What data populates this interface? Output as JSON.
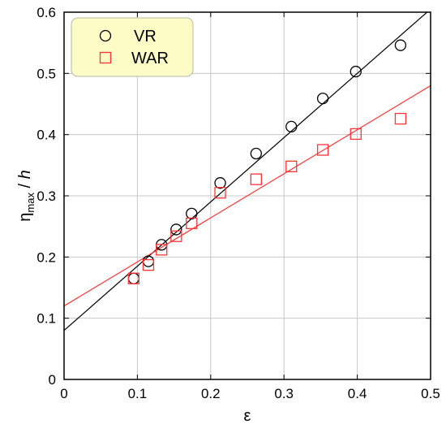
{
  "chart_data": {
    "type": "scatter",
    "xlabel": "ε",
    "ylabel": {
      "base": "η",
      "sub": "max",
      "rest": " / ",
      "italic": "h"
    },
    "xlim": [
      0,
      0.5
    ],
    "ylim": [
      0,
      0.6
    ],
    "xticks": [
      0,
      0.1,
      0.2,
      0.3,
      0.4,
      0.5
    ],
    "yticks": [
      0,
      0.1,
      0.2,
      0.3,
      0.4,
      0.5,
      0.6
    ],
    "xtick_labels": [
      "0",
      "0.1",
      "0.2",
      "0.3",
      "0.4",
      "0.5"
    ],
    "ytick_labels": [
      "0",
      "0.1",
      "0.2",
      "0.3",
      "0.4",
      "0.5",
      "0.6"
    ],
    "grid": true,
    "legend_position": "top-left",
    "series": [
      {
        "name": "VR",
        "marker": "circle",
        "color": "#000000",
        "x": [
          0.095,
          0.115,
          0.133,
          0.153,
          0.174,
          0.213,
          0.262,
          0.31,
          0.353,
          0.398,
          0.459
        ],
        "y": [
          0.165,
          0.193,
          0.22,
          0.245,
          0.271,
          0.321,
          0.369,
          0.413,
          0.459,
          0.503,
          0.546
        ],
        "fit": {
          "intercept": 0.08,
          "slope": 1.05
        }
      },
      {
        "name": "WAR",
        "marker": "square",
        "color": "#ff3333",
        "x": [
          0.095,
          0.115,
          0.133,
          0.153,
          0.174,
          0.213,
          0.262,
          0.31,
          0.353,
          0.398,
          0.459
        ],
        "y": [
          0.165,
          0.187,
          0.212,
          0.234,
          0.255,
          0.305,
          0.327,
          0.348,
          0.375,
          0.401,
          0.426
        ],
        "fit": {
          "intercept": 0.12,
          "slope": 0.72
        }
      }
    ]
  }
}
